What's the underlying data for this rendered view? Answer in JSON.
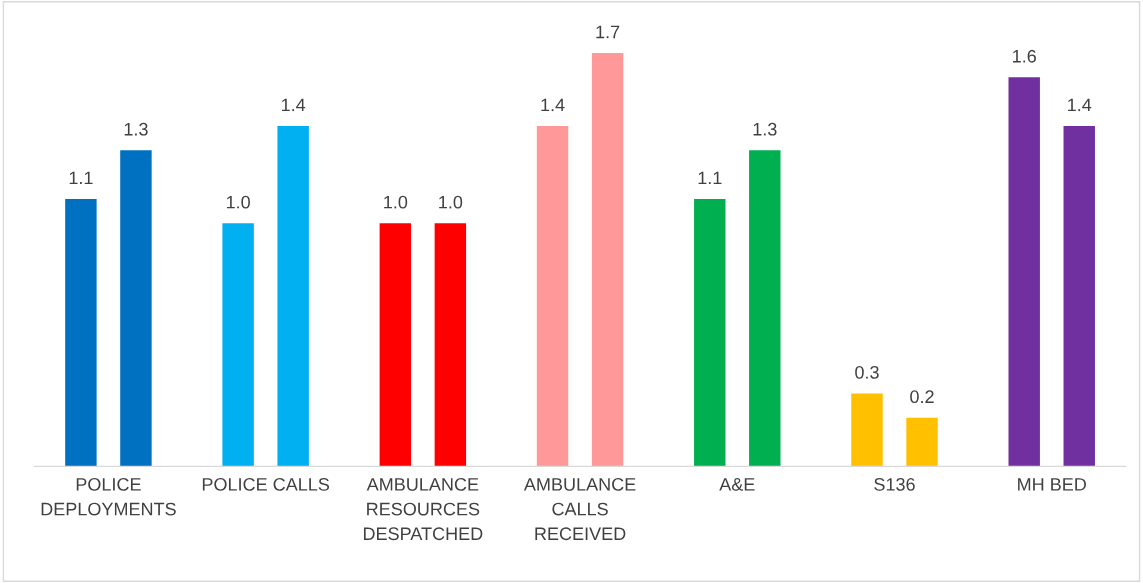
{
  "chart_data": {
    "type": "bar",
    "categories": [
      "POLICE\nDEPLOYMENTS",
      "POLICE CALLS",
      "AMBULANCE\nRESOURCES\nDESPATCHED",
      "AMBULANCE\nCALLS\nRECEIVED",
      "A&E",
      "S136",
      "MH BED"
    ],
    "series": [
      {
        "colors": [
          "#0070c0",
          "#00b0f0",
          "#ff0000",
          "#ff9999",
          "#00b050",
          "#ffc000",
          "#7030a0"
        ],
        "values": [
          1.1,
          1.0,
          1.0,
          1.4,
          1.1,
          0.3,
          1.6
        ],
        "value_labels": [
          "1.1",
          "1.0",
          "1.0",
          "1.4",
          "1.1",
          "0.3",
          "1.6"
        ]
      },
      {
        "colors": [
          "#0070c0",
          "#00b0f0",
          "#ff0000",
          "#ff9999",
          "#00b050",
          "#ffc000",
          "#7030a0"
        ],
        "values": [
          1.3,
          1.4,
          1.0,
          1.7,
          1.3,
          0.2,
          1.4
        ],
        "value_labels": [
          "1.3",
          "1.4",
          "1.0",
          "1.7",
          "1.3",
          "0.2",
          "1.4"
        ]
      }
    ],
    "tick_labels": "x",
    "grid": false
  }
}
